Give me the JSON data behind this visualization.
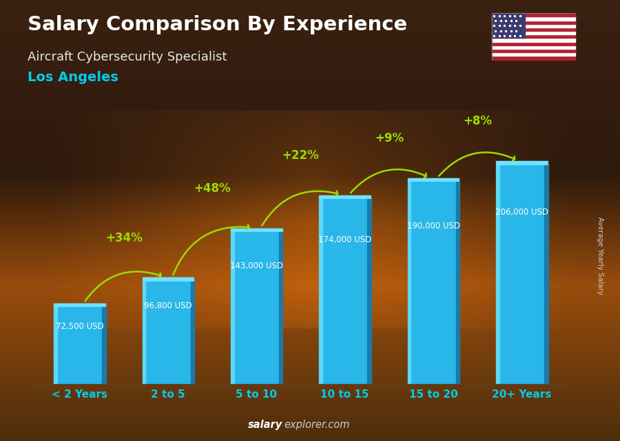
{
  "title": "Salary Comparison By Experience",
  "subtitle": "Aircraft Cybersecurity Specialist",
  "city": "Los Angeles",
  "ylabel": "Average Yearly Salary",
  "footer_bold": "salary",
  "footer_normal": "explorer.com",
  "categories": [
    "< 2 Years",
    "2 to 5",
    "5 to 10",
    "10 to 15",
    "15 to 20",
    "20+ Years"
  ],
  "values": [
    72500,
    96800,
    143000,
    174000,
    190000,
    206000
  ],
  "value_labels": [
    "72,500 USD",
    "96,800 USD",
    "143,000 USD",
    "174,000 USD",
    "190,000 USD",
    "206,000 USD"
  ],
  "pct_labels": [
    "+34%",
    "+48%",
    "+22%",
    "+9%",
    "+8%"
  ],
  "bar_color_face": "#29b6e8",
  "bar_color_light": "#5dd8f8",
  "bar_color_dark": "#1a7aaa",
  "bar_color_top": "#70e0ff",
  "bg_dark": "#1a1008",
  "title_color": "#ffffff",
  "subtitle_color": "#e8e8e8",
  "city_color": "#00ccee",
  "pct_color": "#99dd00",
  "value_label_color": "#ffffff",
  "xlabel_color": "#00ccee",
  "footer_color": "#cccccc",
  "footer_bold_color": "#ffffff",
  "ylabel_color": "#cccccc",
  "arrow_color": "#99dd00"
}
